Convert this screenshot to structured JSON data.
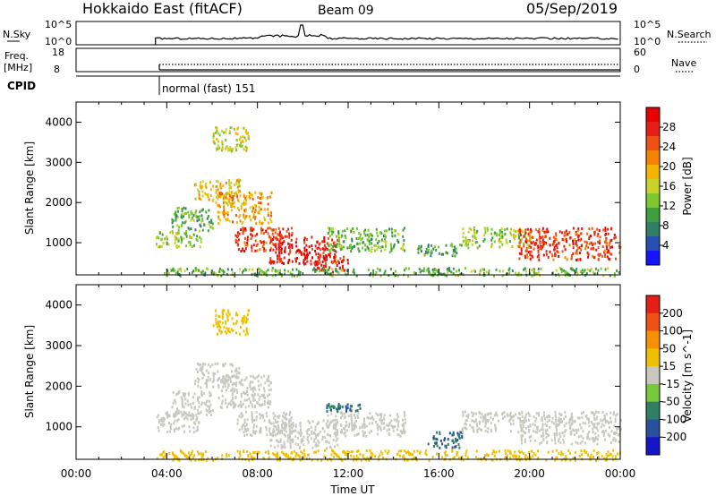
{
  "header": {
    "station": "Hokkaido East (fitACF)",
    "beam": "Beam 09",
    "date": "05/Sep/2019"
  },
  "summary_panels": {
    "nsky_label": "N.Sky",
    "nsky_ticks": [
      "10^5",
      "10^0"
    ],
    "nsearch_label": "N.Search",
    "nsearch_ticks": [
      "10^5",
      "10^0"
    ],
    "freq_label_top": "Freq.",
    "freq_label_unit": "[MHz]",
    "freq_ticks": [
      "18",
      "8"
    ],
    "nave_label": "Nave",
    "nave_ticks": [
      "60",
      "0"
    ],
    "cpid_label": "CPID",
    "cpid_value": "normal (fast) 151"
  },
  "chart_data": [
    {
      "type": "heatmap",
      "name": "power",
      "ylabel": "Slant Range [km]",
      "ylim": [
        200,
        4500
      ],
      "yticks": [
        "1000",
        "2000",
        "3000",
        "4000"
      ],
      "xlim_hours": [
        0,
        24
      ],
      "colorbar": {
        "label": "Power [dB]",
        "ticks": [
          "4",
          "8",
          "12",
          "16",
          "20",
          "24",
          "28"
        ],
        "colors": [
          "#1414ff",
          "#2850b4",
          "#2f7f64",
          "#3ca03c",
          "#7cc82d",
          "#c8d22a",
          "#f5b400",
          "#f58200",
          "#f05014",
          "#e61e14",
          "#e60000"
        ]
      },
      "echo_regions": [
        {
          "t0": 3.5,
          "t1": 5.5,
          "r0": 900,
          "r1": 1300,
          "level": 14
        },
        {
          "t0": 4.2,
          "t1": 6.0,
          "r0": 1300,
          "r1": 1900,
          "level": 12
        },
        {
          "t0": 5.2,
          "t1": 7.2,
          "r0": 2000,
          "r1": 2600,
          "level": 18
        },
        {
          "t0": 6.0,
          "t1": 7.6,
          "r0": 3300,
          "r1": 3900,
          "level": 16
        },
        {
          "t0": 6.2,
          "t1": 8.6,
          "r0": 1500,
          "r1": 2300,
          "level": 20
        },
        {
          "t0": 7.0,
          "t1": 9.5,
          "r0": 800,
          "r1": 1400,
          "level": 26
        },
        {
          "t0": 8.5,
          "t1": 11.5,
          "r0": 500,
          "r1": 1200,
          "level": 28
        },
        {
          "t0": 10.5,
          "t1": 12.0,
          "r0": 300,
          "r1": 700,
          "level": 28
        },
        {
          "t0": 11.0,
          "t1": 14.5,
          "r0": 800,
          "r1": 1400,
          "level": 12
        },
        {
          "t0": 15.0,
          "t1": 17.0,
          "r0": 700,
          "r1": 1000,
          "level": 10
        },
        {
          "t0": 17.0,
          "t1": 20.0,
          "r0": 900,
          "r1": 1400,
          "level": 14
        },
        {
          "t0": 19.5,
          "t1": 24.0,
          "r0": 600,
          "r1": 1400,
          "level": 26
        },
        {
          "t0": 3.5,
          "t1": 24.0,
          "r0": 200,
          "r1": 400,
          "level": 12
        }
      ]
    },
    {
      "type": "heatmap",
      "name": "velocity",
      "ylabel": "Slant Range [km]",
      "ylim": [
        200,
        4500
      ],
      "yticks": [
        "1000",
        "2000",
        "3000",
        "4000"
      ],
      "xlabel": "Time UT",
      "xticks": [
        "00:00",
        "04:00",
        "08:00",
        "12:00",
        "16:00",
        "20:00",
        "00:00"
      ],
      "xlim_hours": [
        0,
        24
      ],
      "colorbar": {
        "label": "Velocity [m s^-1]",
        "ticks": [
          "200",
          "100",
          "50",
          "15",
          "-15",
          "-50",
          "-100",
          "-200"
        ],
        "colors": [
          "#1414c8",
          "#2850a0",
          "#2f7f64",
          "#78c83c",
          "#c8c8c0",
          "#f0c000",
          "#f59000",
          "#f05014",
          "#e61e14"
        ]
      },
      "echo_regions": [
        {
          "t0": 3.5,
          "t1": 5.5,
          "r0": 900,
          "r1": 1400,
          "level": 0
        },
        {
          "t0": 4.2,
          "t1": 6.0,
          "r0": 1300,
          "r1": 1900,
          "level": 0
        },
        {
          "t0": 5.2,
          "t1": 7.2,
          "r0": 2000,
          "r1": 2600,
          "level": 0
        },
        {
          "t0": 6.0,
          "t1": 7.6,
          "r0": 3300,
          "r1": 3900,
          "level": -30
        },
        {
          "t0": 6.2,
          "t1": 8.6,
          "r0": 1500,
          "r1": 2300,
          "level": 0
        },
        {
          "t0": 7.0,
          "t1": 9.5,
          "r0": 800,
          "r1": 1400,
          "level": 0
        },
        {
          "t0": 8.5,
          "t1": 11.5,
          "r0": 500,
          "r1": 1200,
          "level": 0
        },
        {
          "t0": 11.0,
          "t1": 14.5,
          "r0": 800,
          "r1": 1400,
          "level": 0
        },
        {
          "t0": 11.0,
          "t1": 12.5,
          "r0": 1400,
          "r1": 1600,
          "level": 50
        },
        {
          "t0": 15.5,
          "t1": 17.0,
          "r0": 500,
          "r1": 900,
          "level": 50
        },
        {
          "t0": 17.0,
          "t1": 20.0,
          "r0": 900,
          "r1": 1400,
          "level": 0
        },
        {
          "t0": 19.5,
          "t1": 24.0,
          "r0": 600,
          "r1": 1400,
          "level": 0
        },
        {
          "t0": 3.5,
          "t1": 24.0,
          "r0": 200,
          "r1": 450,
          "level": -40
        }
      ]
    }
  ]
}
